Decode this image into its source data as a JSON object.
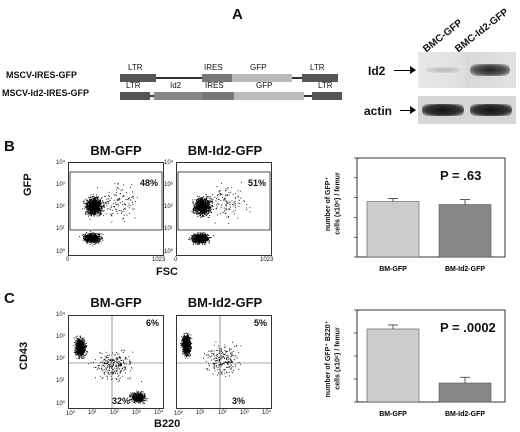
{
  "panels": {
    "a": "A",
    "b": "B",
    "c": "C"
  },
  "constructs": {
    "row1": {
      "name": "MSCV-IRES-GFP",
      "ltr1": "LTR",
      "ires": "IRES",
      "gfp": "GFP",
      "ltr2": "LTR"
    },
    "row2": {
      "name": "MSCV-Id2-IRES-GFP",
      "ltr1": "LTR",
      "id2": "Id2",
      "ires": "IRES",
      "gfp": "GFP",
      "ltr2": "LTR"
    }
  },
  "western": {
    "lanes": [
      "BMC-GFP",
      "BMC-Id2-GFP"
    ],
    "rows": [
      "Id2",
      "actin"
    ]
  },
  "panel_b": {
    "flow": [
      {
        "title": "BM-GFP",
        "percent": "48%"
      },
      {
        "title": "BM-Id2-GFP",
        "percent": "51%"
      }
    ],
    "yaxis": "GFP",
    "xaxis": "FSC",
    "yticks": [
      "10⁴",
      "10³",
      "10²",
      "10¹",
      "10⁰"
    ],
    "xticks": [
      "0",
      "1023"
    ],
    "chart_data": {
      "type": "bar",
      "categories": [
        "BM-GFP",
        "BM-Id2-GFP"
      ],
      "values": [
        28,
        26.5
      ],
      "errors": [
        1.5,
        2.5
      ],
      "ylabel_line1": "number of GFP⁺",
      "ylabel_line2": "cells (x10⁶) / femur",
      "pvalue": "P = .63",
      "ylim": [
        0,
        50
      ]
    }
  },
  "panel_c": {
    "flow": [
      {
        "title": "BM-GFP",
        "ur": "6%",
        "lr": "32%"
      },
      {
        "title": "BM-Id2-GFP",
        "ur": "5%",
        "lr": "3%"
      }
    ],
    "yaxis": "CD43",
    "xaxis": "B220",
    "ticks": [
      "10⁰",
      "10¹",
      "10²",
      "10³",
      "10⁴"
    ],
    "chart_data": {
      "type": "bar",
      "categories": [
        "BM-GFP",
        "BM-Id2-GFP"
      ],
      "values": [
        12.7,
        3.3
      ],
      "errors": [
        0.7,
        1.0
      ],
      "ylabel_line1": "number of GFP⁺ B220⁺",
      "ylabel_line2": "cells (x10⁶) / femur",
      "pvalue": "P = .0002",
      "ylim": [
        0,
        16
      ]
    }
  }
}
